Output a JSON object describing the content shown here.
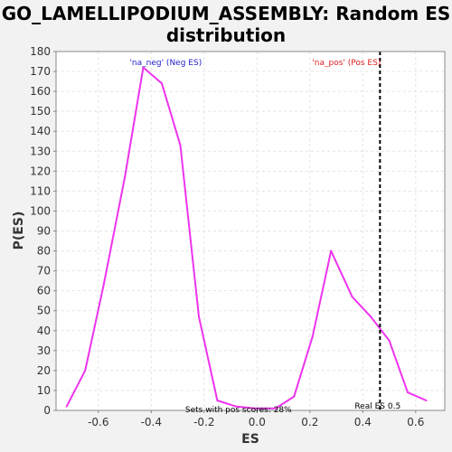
{
  "chart_data": {
    "type": "line",
    "title": "GO_LAMELLIPODIUM_ASSEMBLY: Random ES distribution",
    "title_lines": [
      "GO_LAMELLIPODIUM_ASSEMBLY: Random ES",
      "distribution"
    ],
    "xlabel": "ES",
    "ylabel": "P(ES)",
    "xlim": [
      -0.76,
      0.71
    ],
    "ylim": [
      0,
      180
    ],
    "x_ticks": [
      -0.6,
      -0.4,
      -0.2,
      0.0,
      0.2,
      0.4,
      0.6
    ],
    "x_tick_labels": [
      "-0.6",
      "-0.4",
      "-0.2",
      "0.0",
      "0.2",
      "0.4",
      "0.6"
    ],
    "y_ticks": [
      0,
      10,
      20,
      30,
      40,
      50,
      60,
      70,
      80,
      90,
      100,
      110,
      120,
      130,
      140,
      150,
      160,
      170,
      180
    ],
    "y_tick_labels": [
      "0",
      "10",
      "20",
      "30",
      "40",
      "50",
      "60",
      "70",
      "80",
      "90",
      "100",
      "110",
      "120",
      "130",
      "140",
      "150",
      "160",
      "170",
      "180"
    ],
    "grid": true,
    "series": [
      {
        "color": "#ee33ee",
        "x": [
          -0.72,
          -0.65,
          -0.58,
          -0.5,
          -0.43,
          -0.36,
          -0.29,
          -0.22,
          -0.15,
          -0.08,
          -0.01,
          0.07,
          0.14,
          0.21,
          0.28,
          0.36,
          0.43,
          0.5,
          0.57,
          0.64
        ],
        "y": [
          2,
          20,
          63,
          117,
          172,
          164,
          133,
          47,
          5,
          2,
          1,
          1,
          7,
          37,
          80,
          57,
          47,
          35,
          9,
          5
        ]
      }
    ],
    "reference_line": {
      "x": 0.465,
      "label": "Real ES 0.5",
      "color": "#000000",
      "style": "dashed"
    },
    "annotations": [
      {
        "text": "'na_neg' (Neg ES)",
        "color": "#2222cc",
        "x": -0.42,
        "y": 175
      },
      {
        "text": "'na_pos' (Pos ES)",
        "color": "#dd2222",
        "x": 0.27,
        "y": 175
      },
      {
        "text": "Sets with pos scores: 28%",
        "color": "#000000",
        "x": -0.21,
        "y": 1
      }
    ]
  }
}
